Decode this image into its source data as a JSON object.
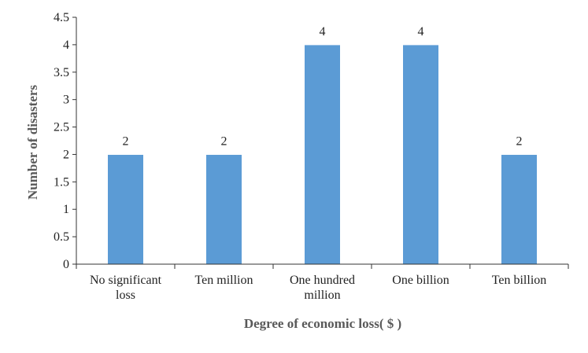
{
  "chart_data": {
    "type": "bar",
    "title": "",
    "xlabel": "Degree of economic loss( $ )",
    "ylabel": "Number of disasters",
    "categories": [
      [
        "No significant",
        "loss"
      ],
      [
        "Ten million"
      ],
      [
        "One hundred",
        "million"
      ],
      [
        "One billion"
      ],
      [
        "Ten billion"
      ]
    ],
    "values": [
      2,
      2,
      4,
      4,
      2
    ],
    "data_labels": [
      "2",
      "2",
      "4",
      "4",
      "2"
    ],
    "ylim": [
      0,
      4.5
    ],
    "yticks": [
      "0",
      "0.5",
      "1",
      "1.5",
      "2",
      "2.5",
      "3",
      "3.5",
      "4",
      "4.5"
    ],
    "grid": false,
    "legend": "none",
    "colors": {
      "bar": "#5b9bd5",
      "bar_edge": "#ffffff",
      "axis": "#333333"
    }
  }
}
